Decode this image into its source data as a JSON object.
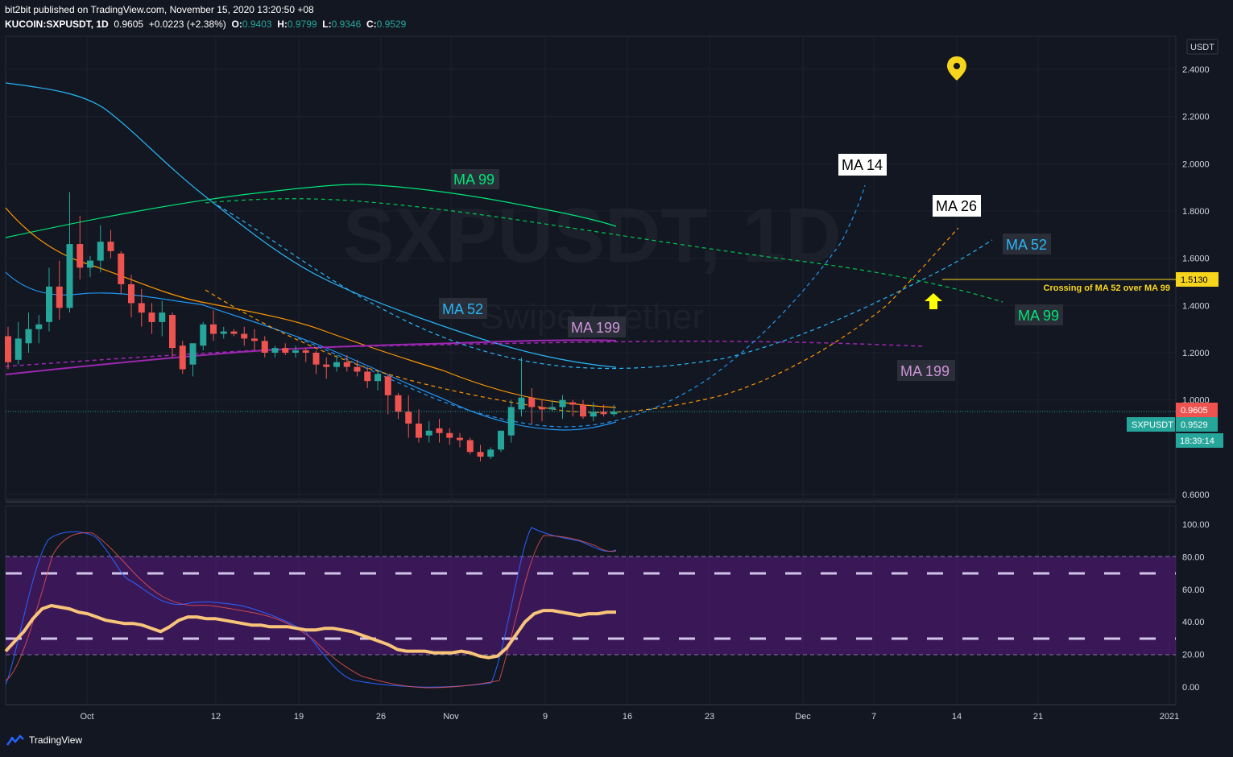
{
  "header": {
    "publisher": "bit2bit published on TradingView.com, November 15, 2020 13:20:50 +08",
    "symbol": "KUCOIN:SXPUSDT, 1D",
    "last": "0.9605",
    "change": "+0.0223 (+2.38%)",
    "o_label": "O:",
    "o": "0.9403",
    "h_label": "H:",
    "h": "0.9799",
    "l_label": "L:",
    "l": "0.9346",
    "c_label": "C:",
    "c": "0.9529"
  },
  "watermark": {
    "title": "SXPUSDT, 1D",
    "subtitle": "Swipe / Tether"
  },
  "currency": "USDT",
  "footer": {
    "brand": "TradingView"
  },
  "colors": {
    "up": "#26a69a",
    "down": "#ef5350",
    "ma14": "#2196f3",
    "ma26": "#ff9800",
    "ma52": "#29b6f6",
    "ma99": "#00e676",
    "ma199": "#9c27b0",
    "rsi": "#f7c47a",
    "band": "#6a1b9a",
    "bg": "#131722"
  },
  "chart_data": [
    {
      "type": "candlestick",
      "title": "SXPUSDT, 1D",
      "x_ticks": [
        "Oct",
        "12",
        "19",
        "26",
        "Nov",
        "9",
        "16",
        "23",
        "Dec",
        "7",
        "14",
        "21",
        "2021"
      ],
      "y_ticks": [
        "2.4000",
        "2.2000",
        "2.0000",
        "1.8000",
        "1.6000",
        "1.4000",
        "1.2000",
        "1.0000",
        "0.6000"
      ],
      "y_range": [
        0.6,
        2.4
      ],
      "candles_ohlc": [
        [
          1.27,
          1.31,
          1.13,
          1.16
        ],
        [
          1.17,
          1.33,
          1.15,
          1.26
        ],
        [
          1.24,
          1.37,
          1.2,
          1.3
        ],
        [
          1.3,
          1.36,
          1.24,
          1.32
        ],
        [
          1.33,
          1.56,
          1.29,
          1.48
        ],
        [
          1.48,
          1.59,
          1.34,
          1.39
        ],
        [
          1.39,
          1.88,
          1.37,
          1.66
        ],
        [
          1.66,
          1.78,
          1.51,
          1.56
        ],
        [
          1.56,
          1.61,
          1.52,
          1.59
        ],
        [
          1.59,
          1.74,
          1.54,
          1.67
        ],
        [
          1.67,
          1.72,
          1.6,
          1.63
        ],
        [
          1.62,
          1.63,
          1.45,
          1.49
        ],
        [
          1.49,
          1.53,
          1.35,
          1.41
        ],
        [
          1.41,
          1.47,
          1.31,
          1.37
        ],
        [
          1.37,
          1.41,
          1.28,
          1.33
        ],
        [
          1.33,
          1.42,
          1.27,
          1.37
        ],
        [
          1.36,
          1.37,
          1.18,
          1.22
        ],
        [
          1.23,
          1.25,
          1.11,
          1.13
        ],
        [
          1.15,
          1.23,
          1.1,
          1.24
        ],
        [
          1.23,
          1.33,
          1.21,
          1.32
        ],
        [
          1.32,
          1.38,
          1.25,
          1.28
        ],
        [
          1.28,
          1.31,
          1.26,
          1.29
        ],
        [
          1.29,
          1.3,
          1.27,
          1.28
        ],
        [
          1.28,
          1.31,
          1.23,
          1.26
        ],
        [
          1.26,
          1.3,
          1.21,
          1.25
        ],
        [
          1.25,
          1.27,
          1.18,
          1.2
        ],
        [
          1.2,
          1.23,
          1.18,
          1.22
        ],
        [
          1.22,
          1.24,
          1.19,
          1.2
        ],
        [
          1.2,
          1.23,
          1.18,
          1.21
        ],
        [
          1.21,
          1.22,
          1.16,
          1.2
        ],
        [
          1.2,
          1.21,
          1.11,
          1.15
        ],
        [
          1.15,
          1.18,
          1.09,
          1.14
        ],
        [
          1.14,
          1.19,
          1.12,
          1.16
        ],
        [
          1.16,
          1.19,
          1.12,
          1.14
        ],
        [
          1.14,
          1.17,
          1.1,
          1.12
        ],
        [
          1.12,
          1.14,
          1.05,
          1.08
        ],
        [
          1.08,
          1.12,
          1.04,
          1.11
        ],
        [
          1.1,
          1.11,
          0.94,
          1.02
        ],
        [
          1.02,
          1.03,
          0.92,
          0.95
        ],
        [
          0.95,
          1.02,
          0.84,
          0.9
        ],
        [
          0.9,
          0.96,
          0.82,
          0.84
        ],
        [
          0.85,
          0.91,
          0.82,
          0.87
        ],
        [
          0.88,
          0.92,
          0.82,
          0.86
        ],
        [
          0.86,
          0.88,
          0.81,
          0.84
        ],
        [
          0.84,
          0.86,
          0.8,
          0.83
        ],
        [
          0.83,
          0.84,
          0.77,
          0.78
        ],
        [
          0.78,
          0.81,
          0.74,
          0.76
        ],
        [
          0.76,
          0.8,
          0.75,
          0.79
        ],
        [
          0.79,
          0.87,
          0.78,
          0.87
        ],
        [
          0.85,
          1.0,
          0.82,
          0.97
        ],
        [
          0.96,
          1.18,
          0.93,
          1.01
        ],
        [
          1.01,
          1.05,
          0.9,
          0.97
        ],
        [
          0.97,
          1.0,
          0.91,
          0.96
        ],
        [
          0.96,
          1.0,
          0.95,
          0.97
        ],
        [
          0.97,
          1.02,
          0.92,
          1.0
        ],
        [
          0.99,
          1.0,
          0.93,
          0.98
        ],
        [
          0.98,
          1.0,
          0.92,
          0.93
        ],
        [
          0.93,
          0.99,
          0.91,
          0.95
        ],
        [
          0.95,
          0.98,
          0.93,
          0.94
        ],
        [
          0.94,
          0.98,
          0.93,
          0.95
        ]
      ],
      "last_price": {
        "label": "0.9605",
        "value": 0.9605
      },
      "close_price": {
        "symbol": "SXPUSDT",
        "label": "0.9529",
        "value": 0.9529,
        "countdown": "18:39:14"
      },
      "horizontal_line": {
        "label": "1.5130",
        "value": 1.513,
        "note": "Crossing of MA 52 over MA 99"
      },
      "moving_averages": [
        {
          "name": "MA 14",
          "values": []
        },
        {
          "name": "MA 26",
          "values": []
        },
        {
          "name": "MA 52",
          "values": []
        },
        {
          "name": "MA 99",
          "values": []
        },
        {
          "name": "MA 199",
          "values": []
        }
      ]
    },
    {
      "type": "line",
      "y_ticks": [
        "100.00",
        "80.00",
        "60.00",
        "40.00",
        "20.00",
        "0.00"
      ],
      "y_range": [
        -5,
        105
      ],
      "bands": {
        "upper": 80,
        "lower": 20,
        "dashed": [
          70,
          30
        ]
      },
      "series": [
        {
          "values": [
            22,
            28,
            34,
            42,
            48,
            50,
            49,
            48,
            46,
            45,
            43,
            41,
            40,
            39,
            39,
            38,
            36,
            34,
            37,
            41,
            43,
            43,
            42,
            42,
            41,
            40,
            39,
            38,
            38,
            37,
            37,
            37,
            36,
            35,
            35,
            36,
            36,
            35,
            34,
            32,
            30,
            28,
            26,
            23,
            22,
            22,
            22,
            21,
            21,
            21,
            22,
            21,
            19,
            18,
            19,
            24,
            32,
            40,
            45,
            47,
            47,
            46,
            45,
            44,
            45,
            45,
            46,
            46
          ]
        }
      ]
    }
  ],
  "annotations": {
    "ma14": "MA 14",
    "ma26": "MA 26",
    "ma52_right": "MA 52",
    "ma99_right": "MA 99",
    "ma199_right": "MA 199",
    "ma99_mid": "MA 99",
    "ma52_mid": "MA 52",
    "ma199_mid": "MA 199"
  }
}
